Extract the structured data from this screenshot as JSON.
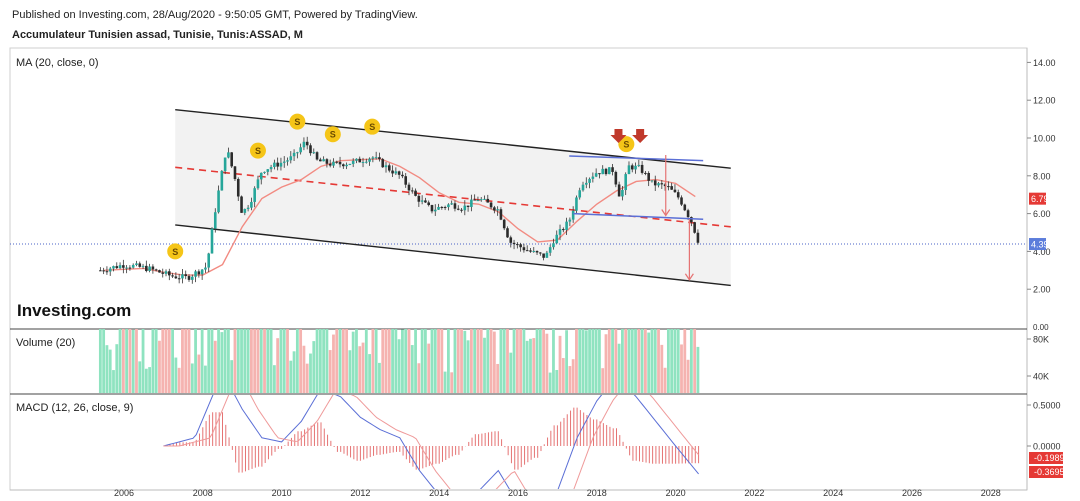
{
  "header": {
    "published": "Published on Investing.com, 28/Aug/2020 - 9:50:05 GMT, Powered by TradingView.",
    "symbol": "Accumulateur Tunisien assad, Tunisie, Tunis:ASSAD, M"
  },
  "chart_data": [
    {
      "type": "line",
      "title": "MA (20, close, 0)",
      "series": [
        {
          "x": [
            2005.5,
            2006.0,
            2006.5,
            2007.0,
            2007.5,
            2008.0,
            2008.5,
            2009.0,
            2009.5,
            2010.0,
            2010.5,
            2011.0,
            2011.5,
            2012.0,
            2012.5,
            2013.0,
            2013.5,
            2014.0,
            2014.5,
            2015.0,
            2015.5,
            2016.0,
            2016.5,
            2017.0,
            2017.5,
            2018.0,
            2018.5,
            2019.0,
            2019.5,
            2020.0,
            2020.5
          ],
          "values": [
            3.0,
            3.05,
            3.1,
            2.9,
            2.75,
            2.75,
            3.3,
            5.3,
            6.8,
            7.4,
            7.8,
            8.5,
            8.8,
            8.85,
            8.9,
            8.5,
            7.9,
            7.1,
            6.6,
            6.5,
            6.1,
            5.2,
            4.5,
            4.6,
            5.6,
            6.5,
            7.2,
            7.7,
            7.8,
            7.6,
            6.9
          ]
        }
      ],
      "channel": {
        "upper": [
          [
            2007.3,
            11.5
          ],
          [
            2021.4,
            8.4
          ]
        ],
        "lower": [
          [
            2007.3,
            5.4
          ],
          [
            2021.4,
            2.2
          ]
        ],
        "median": [
          [
            2007.3,
            8.45
          ],
          [
            2021.4,
            5.3
          ]
        ]
      },
      "annotations": {
        "dividend_marks": [
          2007.3,
          2009.4,
          2010.4,
          2011.3,
          2012.3,
          2018.75
        ],
        "down_arrows": [
          2018.55,
          2019.1
        ],
        "price_label": "4.39",
        "ma_label": "6.79",
        "price_value": 4.39,
        "ma_value": 6.79
      },
      "ylim": [
        0,
        14
      ],
      "yticks": [
        "2.00",
        "4.00",
        "6.00",
        "8.00",
        "10.00",
        "12.00",
        "14.00"
      ],
      "logo": "Investing.com"
    },
    {
      "type": "bar",
      "title": "Volume (20)",
      "yticks": [
        "40K",
        "80K"
      ],
      "zero_label": "0.00",
      "ylim": [
        0,
        100
      ]
    },
    {
      "type": "line",
      "title": "MACD (12, 26, close, 9)",
      "yticks": [
        "0.5000",
        "0.0000"
      ],
      "labels": [
        "-0.1989",
        "-0.3695"
      ],
      "ylim": [
        -0.65,
        0.65
      ]
    }
  ],
  "xaxis": {
    "ticks": [
      "2006",
      "2008",
      "2010",
      "2012",
      "2014",
      "2016",
      "2018",
      "2020",
      "2022",
      "2024",
      "2026",
      "2028"
    ],
    "values": [
      2006,
      2008,
      2010,
      2012,
      2014,
      2016,
      2018,
      2020,
      2022,
      2024,
      2026,
      2028
    ]
  },
  "colors": {
    "up": "#26a69a",
    "down": "#ef5350",
    "vol_up": "#8fe3c0",
    "vol_down": "#f5b3b0",
    "ma": "#f28b82",
    "channel_fill": "#f2f2f2",
    "median": "#e53935",
    "gold": "#f5c518",
    "arrow": "#c0392b",
    "blue": "#5b6fd6",
    "price_label_bg": "#5c7ddb",
    "ma_label_bg": "#e53935"
  }
}
